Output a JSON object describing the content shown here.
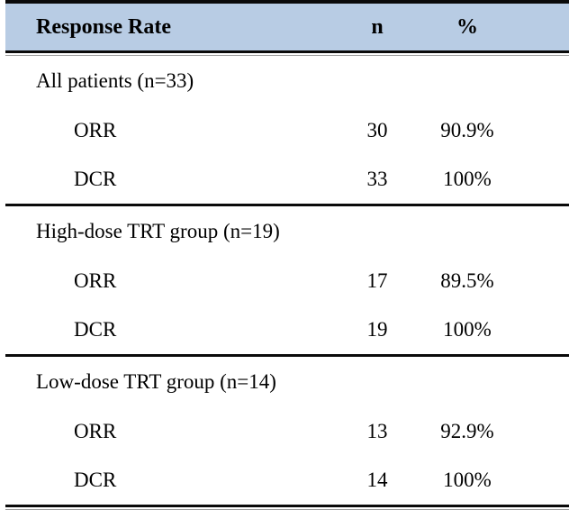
{
  "table": {
    "header": {
      "label": "Response Rate",
      "col_n": "n",
      "col_pct": "%"
    },
    "colors": {
      "header_bg": "#b8cce4",
      "rule": "#0a0a0a"
    },
    "sections": [
      {
        "title": "All patients (n=33)",
        "rows": [
          {
            "label": "ORR",
            "n": "30",
            "pct": "90.9%"
          },
          {
            "label": "DCR",
            "n": "33",
            "pct": "100%"
          }
        ]
      },
      {
        "title": "High-dose TRT group (n=19)",
        "rows": [
          {
            "label": "ORR",
            "n": "17",
            "pct": "89.5%"
          },
          {
            "label": "DCR",
            "n": "19",
            "pct": "100%"
          }
        ]
      },
      {
        "title": "Low-dose TRT group (n=14)",
        "rows": [
          {
            "label": "ORR",
            "n": "13",
            "pct": "92.9%"
          },
          {
            "label": "DCR",
            "n": "14",
            "pct": "100%"
          }
        ]
      }
    ]
  }
}
